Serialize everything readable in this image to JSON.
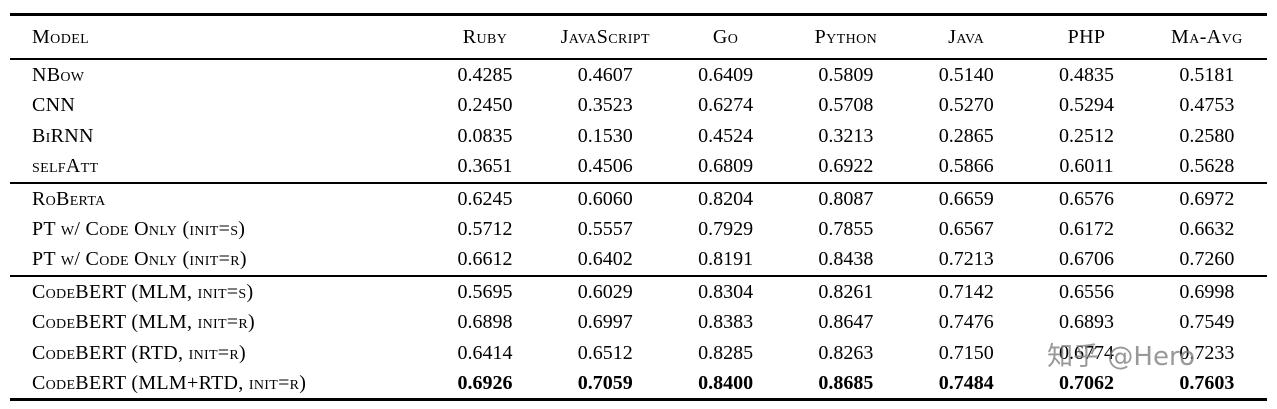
{
  "table": {
    "columns": [
      "Model",
      "Ruby",
      "JavaScript",
      "Go",
      "Python",
      "Java",
      "PHP",
      "Ma-Avg"
    ],
    "groups": [
      {
        "rows": [
          {
            "model": "NBow",
            "values": [
              "0.4285",
              "0.4607",
              "0.6409",
              "0.5809",
              "0.5140",
              "0.4835",
              "0.5181"
            ],
            "bold_values": false
          },
          {
            "model": "CNN",
            "values": [
              "0.2450",
              "0.3523",
              "0.6274",
              "0.5708",
              "0.5270",
              "0.5294",
              "0.4753"
            ],
            "bold_values": false
          },
          {
            "model": "BiRNN",
            "values": [
              "0.0835",
              "0.1530",
              "0.4524",
              "0.3213",
              "0.2865",
              "0.2512",
              "0.2580"
            ],
            "bold_values": false
          },
          {
            "model": "selfAtt",
            "values": [
              "0.3651",
              "0.4506",
              "0.6809",
              "0.6922",
              "0.5866",
              "0.6011",
              "0.5628"
            ],
            "bold_values": false
          }
        ]
      },
      {
        "rows": [
          {
            "model": "RoBerta",
            "values": [
              "0.6245",
              "0.6060",
              "0.8204",
              "0.8087",
              "0.6659",
              "0.6576",
              "0.6972"
            ],
            "bold_values": false
          },
          {
            "model": "PT w/ Code Only (init=s)",
            "values": [
              "0.5712",
              "0.5557",
              "0.7929",
              "0.7855",
              "0.6567",
              "0.6172",
              "0.6632"
            ],
            "bold_values": false
          },
          {
            "model": "PT w/ Code Only (init=r)",
            "values": [
              "0.6612",
              "0.6402",
              "0.8191",
              "0.8438",
              "0.7213",
              "0.6706",
              "0.7260"
            ],
            "bold_values": false
          }
        ]
      },
      {
        "rows": [
          {
            "model": "CodeBERT (MLM, init=s)",
            "values": [
              "0.5695",
              "0.6029",
              "0.8304",
              "0.8261",
              "0.7142",
              "0.6556",
              "0.6998"
            ],
            "bold_values": false
          },
          {
            "model": "CodeBERT (MLM, init=r)",
            "values": [
              "0.6898",
              "0.6997",
              "0.8383",
              "0.8647",
              "0.7476",
              "0.6893",
              "0.7549"
            ],
            "bold_values": false
          },
          {
            "model": "CodeBERT (RTD, init=r)",
            "values": [
              "0.6414",
              "0.6512",
              "0.8285",
              "0.8263",
              "0.7150",
              "0.6774",
              "0.7233"
            ],
            "bold_values": false
          },
          {
            "model": "CodeBERT (MLM+RTD, init=r)",
            "values": [
              "0.6926",
              "0.7059",
              "0.8400",
              "0.8685",
              "0.7484",
              "0.7062",
              "0.7603"
            ],
            "bold_values": true
          }
        ]
      }
    ]
  },
  "watermark": {
    "text": "知乎 @Hero"
  }
}
